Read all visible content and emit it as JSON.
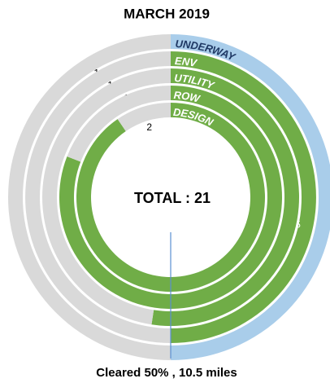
{
  "chart_data": {
    "type": "radial_bar",
    "title": "MARCH 2019",
    "center_label": "TOTAL : 21",
    "annotation": "Cleared 50% , 10.5 miles",
    "categories": [
      "UNDERWAY",
      "ENV",
      "UTILITY",
      "ROW",
      "DESIGN"
    ],
    "category_colors": [
      "#1f3864",
      "#ffffff",
      "#ffffff",
      "#ffffff",
      "#ffffff"
    ],
    "ylim": [
      0,
      21
    ],
    "completed": {
      "values": [
        10.5,
        10.5,
        11,
        17,
        19
      ],
      "colors": [
        "#a9cdea",
        "#70ad47",
        "#70ad47",
        "#70ad47",
        "#70ad47"
      ]
    },
    "remaining": {
      "values": [
        10.5,
        10.5,
        10,
        4,
        2
      ],
      "color": "#d9d9d9"
    }
  }
}
